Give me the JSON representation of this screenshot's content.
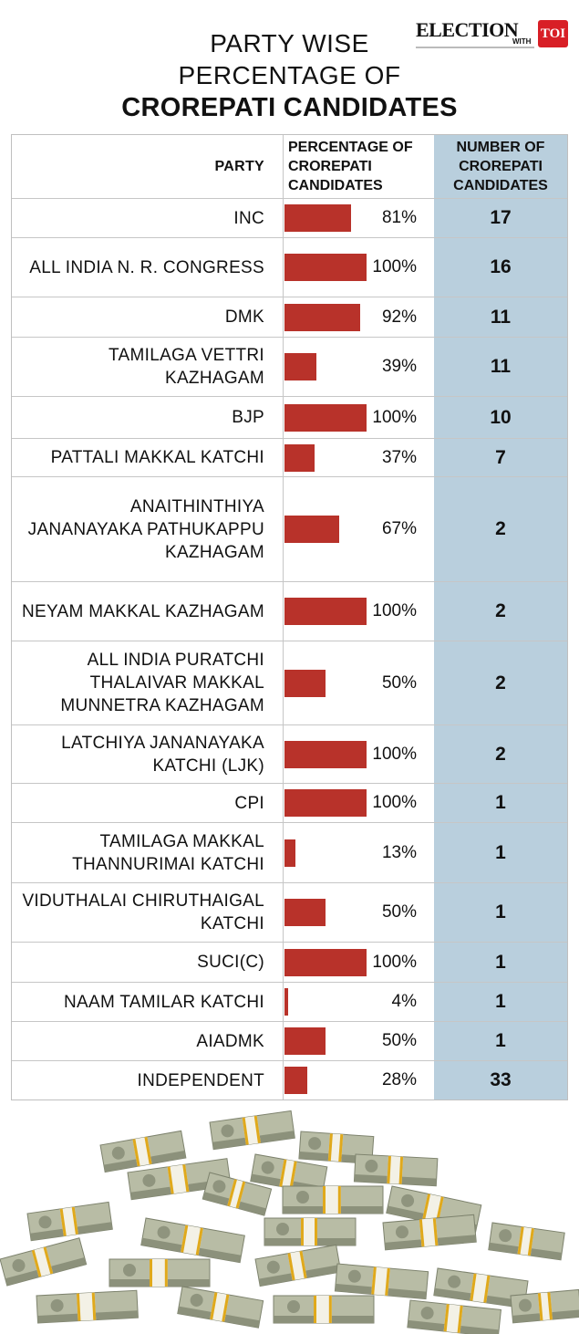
{
  "logo": {
    "text": "ELECTION",
    "with": "WITH",
    "brand": "TOI"
  },
  "title": {
    "line1": "PARTY WISE",
    "line2": "PERCENTAGE OF",
    "line3": "CROREPATI CANDIDATES"
  },
  "chart_data": {
    "type": "table",
    "columns": [
      "PARTY",
      "PERCENTAGE OF CROREPATI CANDIDATES",
      "NUMBER OF CROREPATI CANDIDATES"
    ],
    "bar_color": "#b8322a",
    "count_column_color": "#b9cfdd",
    "rows": [
      {
        "party": "INC",
        "pct": 81,
        "pct_label": "81%",
        "count": "17"
      },
      {
        "party": "ALL INDIA N. R. CONGRESS",
        "pct": 100,
        "pct_label": "100%",
        "count": "16"
      },
      {
        "party": "DMK",
        "pct": 92,
        "pct_label": "92%",
        "count": "11"
      },
      {
        "party": "TAMILAGA VETTRI KAZHAGAM",
        "pct": 39,
        "pct_label": "39%",
        "count": "11"
      },
      {
        "party": "BJP",
        "pct": 100,
        "pct_label": "100%",
        "count": "10"
      },
      {
        "party": "PATTALI MAKKAL KATCHI",
        "pct": 37,
        "pct_label": "37%",
        "count": "7"
      },
      {
        "party": "ANAITHINTHIYA JANANAYAKA PATHUKAPPU KAZHAGAM",
        "pct": 67,
        "pct_label": "67%",
        "count": "2"
      },
      {
        "party": "NEYAM MAKKAL KAZHAGAM",
        "pct": 100,
        "pct_label": "100%",
        "count": "2"
      },
      {
        "party": "ALL INDIA PURATCHI THALAIVAR MAKKAL MUNNETRA KAZHAGAM",
        "pct": 50,
        "pct_label": "50%",
        "count": "2"
      },
      {
        "party": "LATCHIYA JANANAYAKA KATCHI (LJK)",
        "pct": 100,
        "pct_label": "100%",
        "count": "2"
      },
      {
        "party": "CPI",
        "pct": 100,
        "pct_label": "100%",
        "count": "1"
      },
      {
        "party": "TAMILAGA MAKKAL THANNURIMAI KATCHI",
        "pct": 13,
        "pct_label": "13%",
        "count": "1"
      },
      {
        "party": "VIDUTHALAI CHIRUTHAIGAL KATCHI",
        "pct": 50,
        "pct_label": "50%",
        "count": "1"
      },
      {
        "party": "SUCI(C)",
        "pct": 100,
        "pct_label": "100%",
        "count": "1"
      },
      {
        "party": "NAAM TAMILAR KATCHI",
        "pct": 4,
        "pct_label": "4%",
        "count": "1"
      },
      {
        "party": "AIADMK",
        "pct": 50,
        "pct_label": "50%",
        "count": "1"
      },
      {
        "party": "INDEPENDENT",
        "pct": 28,
        "pct_label": "28%",
        "count": "33"
      }
    ]
  }
}
